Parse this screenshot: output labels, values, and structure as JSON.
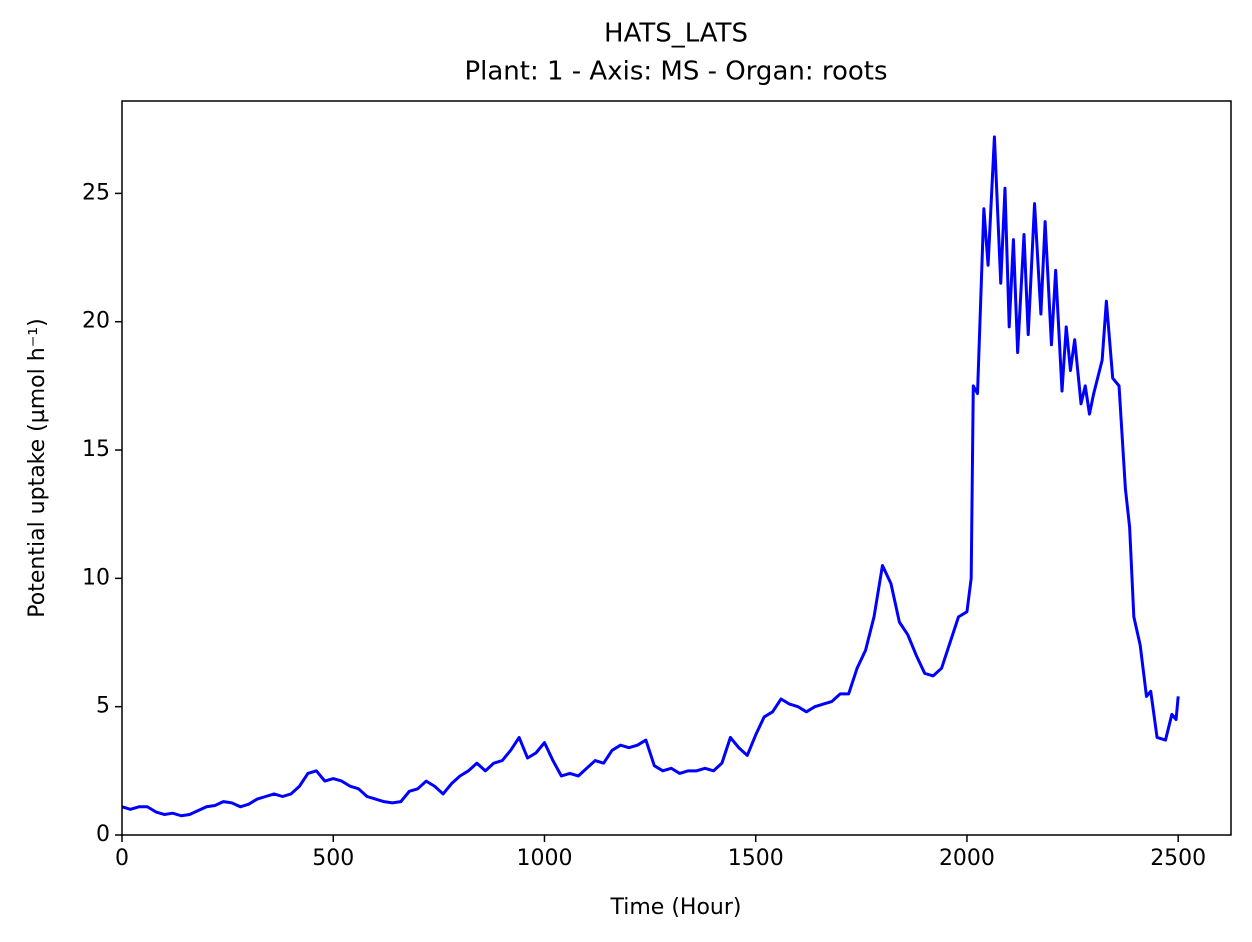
{
  "chart_data": {
    "type": "line",
    "title": "HATS_LATS",
    "subtitle": "Plant: 1 - Axis: MS - Organ: roots",
    "x_label": "Time (Hour)",
    "y_label": "Potential uptake (µmol h⁻¹)",
    "xlim": [
      0,
      2625
    ],
    "ylim": [
      0,
      28.6
    ],
    "xticks": [
      0,
      500,
      1000,
      1500,
      2000,
      2500
    ],
    "yticks": [
      0,
      5,
      10,
      15,
      20,
      25
    ],
    "series": [
      {
        "color": "#0000ff",
        "x": [
          0,
          20,
          40,
          60,
          80,
          100,
          120,
          140,
          160,
          180,
          200,
          220,
          240,
          260,
          280,
          300,
          320,
          340,
          360,
          380,
          400,
          420,
          440,
          460,
          480,
          500,
          520,
          540,
          560,
          580,
          600,
          620,
          640,
          660,
          680,
          700,
          720,
          740,
          760,
          780,
          800,
          820,
          840,
          860,
          880,
          900,
          920,
          940,
          960,
          980,
          1000,
          1020,
          1040,
          1060,
          1080,
          1100,
          1120,
          1140,
          1160,
          1180,
          1200,
          1220,
          1240,
          1260,
          1280,
          1300,
          1320,
          1340,
          1360,
          1380,
          1400,
          1420,
          1440,
          1460,
          1480,
          1500,
          1520,
          1540,
          1560,
          1580,
          1600,
          1620,
          1640,
          1660,
          1680,
          1700,
          1720,
          1740,
          1760,
          1780,
          1800,
          1820,
          1840,
          1860,
          1880,
          1900,
          1920,
          1940,
          1960,
          1980,
          2000,
          2010,
          2015,
          2025,
          2040,
          2050,
          2065,
          2080,
          2090,
          2100,
          2110,
          2120,
          2135,
          2145,
          2160,
          2175,
          2185,
          2200,
          2210,
          2225,
          2235,
          2245,
          2255,
          2270,
          2280,
          2290,
          2300,
          2320,
          2330,
          2345,
          2360,
          2375,
          2385,
          2395,
          2410,
          2425,
          2435,
          2450,
          2470,
          2485,
          2495,
          2500
        ],
        "values": [
          1.1,
          1.0,
          1.1,
          1.1,
          0.9,
          0.8,
          0.85,
          0.75,
          0.8,
          0.95,
          1.1,
          1.15,
          1.3,
          1.25,
          1.1,
          1.2,
          1.4,
          1.5,
          1.6,
          1.5,
          1.6,
          1.9,
          2.4,
          2.5,
          2.1,
          2.2,
          2.1,
          1.9,
          1.8,
          1.5,
          1.4,
          1.3,
          1.25,
          1.3,
          1.7,
          1.8,
          2.1,
          1.9,
          1.6,
          2.0,
          2.3,
          2.5,
          2.8,
          2.5,
          2.8,
          2.9,
          3.3,
          3.8,
          3.0,
          3.2,
          3.6,
          2.9,
          2.3,
          2.4,
          2.3,
          2.6,
          2.9,
          2.8,
          3.3,
          3.5,
          3.4,
          3.5,
          3.7,
          2.7,
          2.5,
          2.6,
          2.4,
          2.5,
          2.5,
          2.6,
          2.5,
          2.8,
          3.8,
          3.4,
          3.1,
          3.9,
          4.6,
          4.8,
          5.3,
          5.1,
          5.0,
          4.8,
          5.0,
          5.1,
          5.2,
          5.5,
          5.5,
          6.5,
          7.2,
          8.5,
          10.5,
          9.8,
          8.3,
          7.8,
          7.0,
          6.3,
          6.2,
          6.5,
          7.5,
          8.5,
          8.7,
          10.0,
          17.5,
          17.2,
          24.4,
          22.2,
          27.2,
          21.5,
          25.2,
          19.8,
          23.2,
          18.8,
          23.4,
          19.5,
          24.6,
          20.3,
          23.9,
          19.1,
          22.0,
          17.3,
          19.8,
          18.1,
          19.3,
          16.8,
          17.5,
          16.4,
          17.2,
          18.5,
          20.8,
          17.8,
          17.5,
          13.5,
          12.0,
          8.5,
          7.4,
          5.4,
          5.6,
          3.8,
          3.7,
          4.7,
          4.5,
          5.4
        ]
      }
    ]
  }
}
